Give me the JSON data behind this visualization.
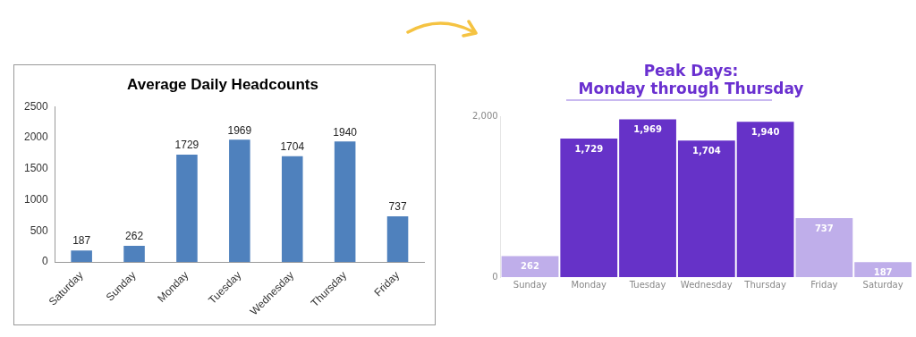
{
  "chart_data": [
    {
      "type": "bar",
      "title": "Average Daily Headcounts",
      "categories": [
        "Saturday",
        "Sunday",
        "Monday",
        "Tuesday",
        "Wednesday",
        "Thursday",
        "Friday"
      ],
      "values": [
        187,
        262,
        1729,
        1969,
        1704,
        1940,
        737
      ],
      "color": "#4f81bd",
      "ylim": [
        0,
        2500
      ],
      "yticks": [
        0,
        500,
        1000,
        1500,
        2000,
        2500
      ],
      "data_labels": true
    },
    {
      "type": "bar",
      "title": "Peak Days:\nMonday through Thursday",
      "categories": [
        "Sunday",
        "Monday",
        "Tuesday",
        "Wednesday",
        "Thursday",
        "Friday",
        "Saturday"
      ],
      "values": [
        262,
        1729,
        1969,
        1704,
        1940,
        737,
        187
      ],
      "colors": [
        "#bfaeea",
        "#6632c8",
        "#6632c8",
        "#6632c8",
        "#6632c8",
        "#bfaeea",
        "#bfaeea"
      ],
      "ylim": [
        0,
        2000
      ],
      "yticks": [
        0,
        {
          "value": 2000,
          "label": "2,000"
        }
      ],
      "value_labels": [
        "262",
        "1,729",
        "1,969",
        "1,704",
        "1,940",
        "737",
        "187"
      ]
    }
  ]
}
